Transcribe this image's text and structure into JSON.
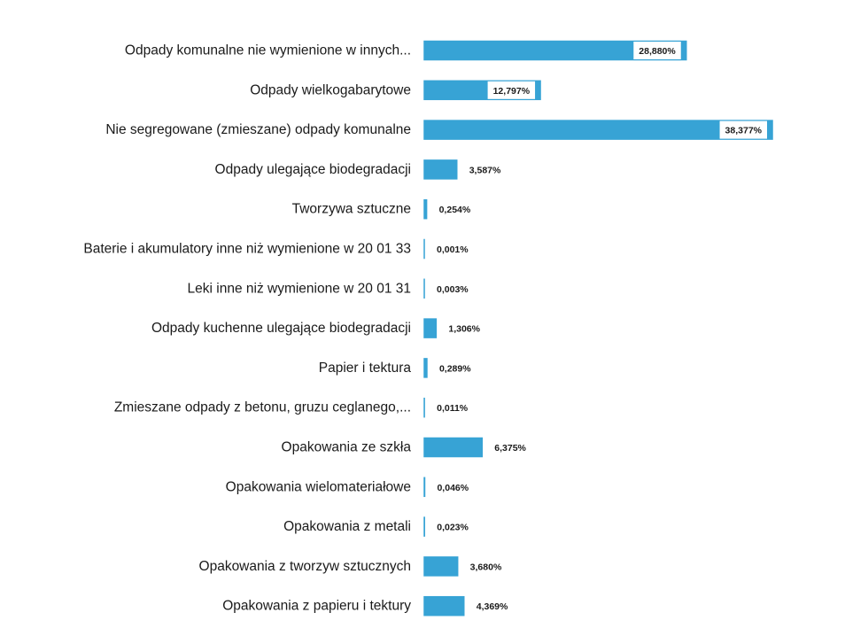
{
  "chart_data": {
    "type": "bar",
    "orientation": "horizontal",
    "color": "#37a3d5",
    "categories": [
      "Odpady komunalne nie wymienione w innych...",
      "Odpady wielkogabarytowe",
      "Nie segregowane (zmieszane) odpady komunalne",
      "Odpady ulegające biodegradacji",
      "Tworzywa sztuczne",
      "Baterie i akumulatory inne niż wymienione w 20 01 33",
      "Leki inne niż wymienione w 20 01 31",
      "Odpady kuchenne ulegające biodegradacji",
      "Papier i tektura",
      "Zmieszane odpady z betonu, gruzu ceglanego,...",
      "Opakowania ze szkła",
      "Opakowania wielomateriałowe",
      "Opakowania z metali",
      "Opakowania z tworzyw sztucznych",
      "Opakowania z papieru i tektury"
    ],
    "values": [
      28.88,
      12.797,
      38.377,
      3.587,
      0.254,
      0.001,
      0.003,
      1.306,
      0.289,
      0.011,
      6.375,
      0.046,
      0.023,
      3.68,
      4.369
    ],
    "value_labels": [
      "28,880%",
      "12,797%",
      "38,377%",
      "3,587%",
      "0,254%",
      "0,001%",
      "0,003%",
      "1,306%",
      "0,289%",
      "0,011%",
      "6,375%",
      "0,046%",
      "0,023%",
      "3,680%",
      "4,369%"
    ]
  }
}
